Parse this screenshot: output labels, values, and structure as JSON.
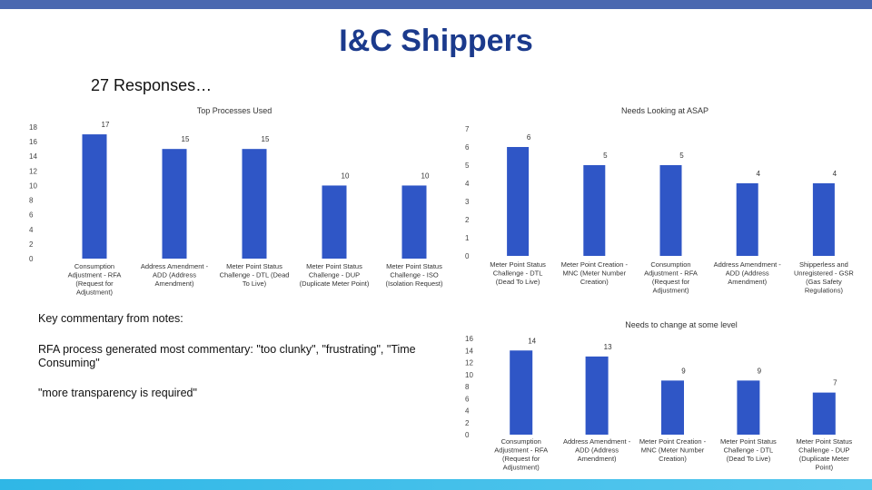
{
  "slide": {
    "title": "I&C Shippers",
    "subtitle": "27 Responses…"
  },
  "commentary": {
    "title": "Key commentary from notes:",
    "text": "RFA process generated most commentary: \"too clunky\", \"frustrating\", \"Time Consuming\"",
    "quote": "\"more transparency is required\""
  },
  "colors": {
    "bar": "#2f56c6",
    "top_bar": "#4a68b0",
    "title": "#1b3a8c",
    "bottom_bar": "#2fb7e6"
  },
  "chart_data": [
    {
      "type": "bar",
      "title": "Top Processes Used",
      "categories": [
        [
          "Consumption",
          "Adjustment - RFA",
          "(Request for",
          "Adjustment)"
        ],
        [
          "Address Amendment -",
          "ADD (Address",
          "Amendment)"
        ],
        [
          "Meter Point Status",
          "Challenge - DTL (Dead",
          "To Live)"
        ],
        [
          "Meter Point Status",
          "Challenge - DUP",
          "(Duplicate Meter Point)"
        ],
        [
          "Meter Point Status",
          "Challenge - ISO",
          "(Isolation Request)"
        ]
      ],
      "values": [
        17,
        15,
        15,
        10,
        10
      ],
      "ylim": [
        0,
        18
      ],
      "yticks": [
        0,
        2,
        4,
        6,
        8,
        10,
        12,
        14,
        16,
        18
      ],
      "grid": false
    },
    {
      "type": "bar",
      "title": "Needs Looking at ASAP",
      "categories": [
        [
          "Meter Point Status",
          "Challenge - DTL",
          "(Dead To Live)"
        ],
        [
          "Meter Point Creation -",
          "MNC (Meter Number",
          "Creation)"
        ],
        [
          "Consumption",
          "Adjustment - RFA",
          "(Request for",
          "Adjustment)"
        ],
        [
          "Address Amendment -",
          "ADD (Address",
          "Amendment)"
        ],
        [
          "Shipperless and",
          "Unregistered - GSR",
          "(Gas Safety",
          "Regulations)"
        ]
      ],
      "values": [
        6,
        5,
        5,
        4,
        4
      ],
      "ylim": [
        0,
        7
      ],
      "yticks": [
        0,
        1,
        2,
        3,
        4,
        5,
        6,
        7
      ],
      "grid": false
    },
    {
      "type": "bar",
      "title": "Needs to change at some level",
      "categories": [
        [
          "Consumption",
          "Adjustment - RFA",
          "(Request for",
          "Adjustment)"
        ],
        [
          "Address Amendment -",
          "ADD (Address",
          "Amendment)"
        ],
        [
          "Meter Point Creation -",
          "MNC (Meter Number",
          "Creation)"
        ],
        [
          "Meter Point Status",
          "Challenge - DTL",
          "(Dead To Live)"
        ],
        [
          "Meter Point Status",
          "Challenge - DUP",
          "(Duplicate Meter",
          "Point)"
        ]
      ],
      "values": [
        14,
        13,
        9,
        9,
        7
      ],
      "ylim": [
        0,
        16
      ],
      "yticks": [
        0,
        2,
        4,
        6,
        8,
        10,
        12,
        14,
        16
      ],
      "grid": false
    }
  ]
}
